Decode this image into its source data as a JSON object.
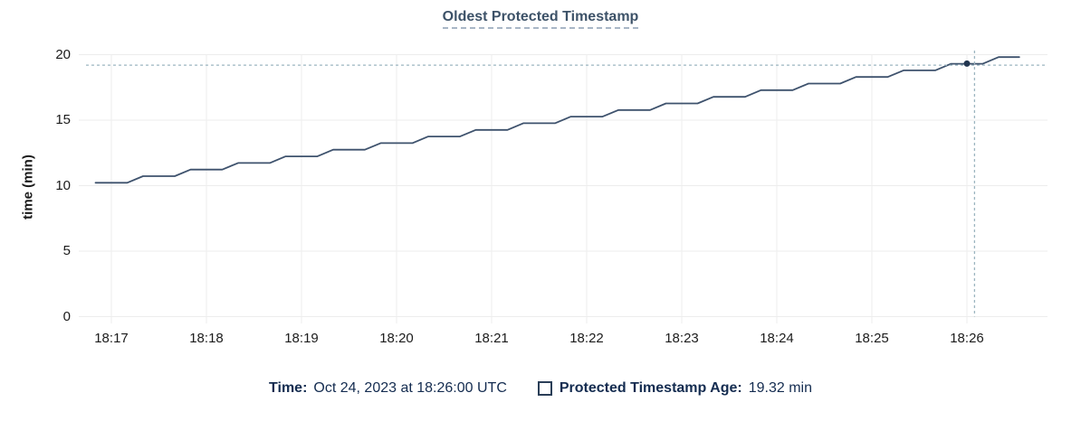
{
  "chart": {
    "title": "Oldest Protected Timestamp",
    "y_axis_title": "time (min)"
  },
  "footer": {
    "time_label": "Time:",
    "time_value": "Oct 24, 2023 at 18:26:00 UTC",
    "legend_label": "Protected Timestamp Age:",
    "legend_value": "19.32 min"
  },
  "colors": {
    "title": "#3d5268",
    "title_underline": "#a9b6c6",
    "footer_text": "#142c50",
    "series_line": "#3e526d",
    "hover_dot": "#223650",
    "crosshair": "#9cb5c0",
    "gridline": "#ededed",
    "tick_text": "#1b1b1b",
    "background": "#ffffff"
  },
  "chart_data": {
    "type": "line",
    "title": "Oldest Protected Timestamp",
    "xlabel": "",
    "ylabel": "time (min)",
    "ylim": [
      0,
      20
    ],
    "y_ticks": [
      0,
      5,
      10,
      15,
      20
    ],
    "x_ticks": [
      "18:17",
      "18:18",
      "18:19",
      "18:20",
      "18:21",
      "18:22",
      "18:23",
      "18:24",
      "18:25",
      "18:26"
    ],
    "x_range_minutes_from_first_tick": [
      -0.343,
      9.848
    ],
    "grid": true,
    "legend_position": "bottom",
    "series": [
      {
        "name": "Protected Timestamp Age",
        "unit": "min",
        "points_format": "[minutes_after_18:17, age_min]",
        "points": [
          [
            -0.167,
            10.22
          ],
          [
            0.167,
            10.22
          ],
          [
            0.333,
            10.725
          ],
          [
            0.667,
            10.725
          ],
          [
            0.833,
            11.23
          ],
          [
            1.167,
            11.23
          ],
          [
            1.333,
            11.735
          ],
          [
            1.667,
            11.735
          ],
          [
            1.833,
            12.24
          ],
          [
            2.167,
            12.24
          ],
          [
            2.333,
            12.745
          ],
          [
            2.667,
            12.745
          ],
          [
            2.833,
            13.25
          ],
          [
            3.167,
            13.25
          ],
          [
            3.333,
            13.755
          ],
          [
            3.667,
            13.755
          ],
          [
            3.833,
            14.26
          ],
          [
            4.167,
            14.26
          ],
          [
            4.333,
            14.765
          ],
          [
            4.667,
            14.765
          ],
          [
            4.833,
            15.27
          ],
          [
            5.167,
            15.27
          ],
          [
            5.333,
            15.775
          ],
          [
            5.667,
            15.775
          ],
          [
            5.833,
            16.28
          ],
          [
            6.167,
            16.28
          ],
          [
            6.333,
            16.785
          ],
          [
            6.667,
            16.785
          ],
          [
            6.833,
            17.29
          ],
          [
            7.167,
            17.29
          ],
          [
            7.333,
            17.795
          ],
          [
            7.667,
            17.795
          ],
          [
            7.833,
            18.3
          ],
          [
            8.167,
            18.3
          ],
          [
            8.333,
            18.805
          ],
          [
            8.667,
            18.805
          ],
          [
            8.833,
            19.31
          ],
          [
            9.167,
            19.31
          ],
          [
            9.333,
            19.815
          ],
          [
            9.55,
            19.815
          ]
        ]
      }
    ],
    "hover": {
      "point_time": "18:26:00",
      "point_minutes_from_first_tick": 9.0,
      "point_value": 19.32,
      "crosshair_x_minutes": 9.08,
      "crosshair_y_value": 19.2
    }
  }
}
